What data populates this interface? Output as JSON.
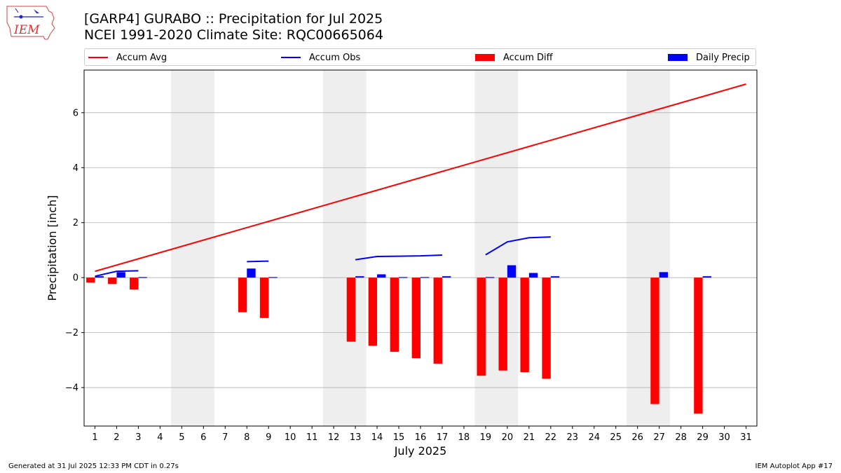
{
  "header": {
    "title_line1": "[GARP4] GURABO :: Precipitation for Jul 2025",
    "title_line2": "NCEI 1991-2020 Climate Site: RQC00665064",
    "logo_text": "IEM"
  },
  "footer": {
    "generated": "Generated at 31 Jul 2025 12:33 PM CDT in 0.27s",
    "app": "IEM Autoplot App #17"
  },
  "colors": {
    "avg": "#ff0000",
    "obs": "#0000ff",
    "diff": "#ff0000",
    "daily": "#0000ff",
    "weekend": "#eeeeee",
    "grid": "#b0b0b0"
  },
  "legend": {
    "items": [
      {
        "label": "Accum Avg",
        "kind": "line",
        "color": "#ff0000"
      },
      {
        "label": "Accum Obs",
        "kind": "line",
        "color": "#0000ff"
      },
      {
        "label": "Accum Diff",
        "kind": "box",
        "color": "#ff0000"
      },
      {
        "label": "Daily Precip",
        "kind": "box",
        "color": "#0000ff"
      }
    ]
  },
  "chart_data": {
    "type": "bar",
    "xlabel": "July 2025",
    "ylabel": "Precipitation [inch]",
    "xlim": [
      0.5,
      31.5
    ],
    "ylim": [
      -5.4,
      7.55
    ],
    "yticks": [
      -4,
      -2,
      0,
      2,
      4,
      6
    ],
    "ytick_labels": [
      "−4",
      "−2",
      "0",
      "2",
      "4",
      "6"
    ],
    "xticks": [
      1,
      2,
      3,
      4,
      5,
      6,
      7,
      8,
      9,
      10,
      11,
      12,
      13,
      14,
      15,
      16,
      17,
      18,
      19,
      20,
      21,
      22,
      23,
      24,
      25,
      26,
      27,
      28,
      29,
      30,
      31
    ],
    "grid": "y",
    "legend_position": "top",
    "weekend_shading": [
      [
        5,
        6
      ],
      [
        12,
        13
      ],
      [
        19,
        20
      ],
      [
        26,
        27
      ]
    ],
    "accum_avg": {
      "name": "Accum Avg",
      "x": [
        1,
        31
      ],
      "values": [
        0.23,
        7.04
      ]
    },
    "accum_obs": {
      "name": "Accum Obs",
      "segments": [
        {
          "x": [
            1,
            2,
            3
          ],
          "values": [
            0.05,
            0.23,
            0.25
          ]
        },
        {
          "x": [
            8,
            9
          ],
          "values": [
            0.58,
            0.6
          ]
        },
        {
          "x": [
            13,
            14,
            15,
            16,
            17
          ],
          "values": [
            0.65,
            0.77,
            0.78,
            0.79,
            0.82
          ]
        },
        {
          "x": [
            19,
            20,
            21,
            22
          ],
          "values": [
            0.83,
            1.3,
            1.45,
            1.48
          ]
        }
      ]
    },
    "accum_diff": {
      "name": "Accum Diff",
      "x": [
        1,
        2,
        3,
        8,
        9,
        13,
        14,
        15,
        16,
        17,
        19,
        20,
        21,
        22,
        27,
        29
      ],
      "values": [
        -0.18,
        -0.23,
        -0.43,
        -1.26,
        -1.47,
        -2.33,
        -2.48,
        -2.7,
        -2.93,
        -3.13,
        -3.57,
        -3.38,
        -3.44,
        -3.68,
        -4.6,
        -4.95
      ]
    },
    "daily_precip": {
      "name": "Daily Precip",
      "x": [
        1,
        2,
        3,
        8,
        9,
        13,
        14,
        15,
        16,
        17,
        19,
        20,
        21,
        22,
        27,
        29
      ],
      "values": [
        0.05,
        0.2,
        0.02,
        0.33,
        0.02,
        0.05,
        0.12,
        0.02,
        0.02,
        0.05,
        0.02,
        0.45,
        0.17,
        0.05,
        0.2,
        0.05
      ]
    }
  }
}
